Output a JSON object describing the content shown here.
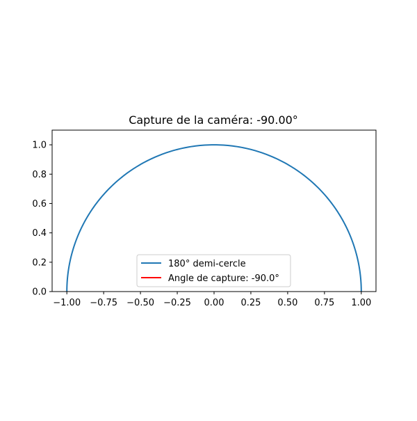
{
  "chart_data": {
    "type": "line",
    "title": "Capture de la caméra: -90.00°",
    "xlabel": "",
    "ylabel": "",
    "xlim": [
      -1.1,
      1.1
    ],
    "ylim": [
      0.0,
      1.1
    ],
    "x_ticks": [
      -1.0,
      -0.75,
      -0.5,
      -0.25,
      0.0,
      0.25,
      0.5,
      0.75,
      1.0
    ],
    "x_tick_labels": [
      "−1.00",
      "−0.75",
      "−0.50",
      "−0.25",
      "0.00",
      "0.25",
      "0.50",
      "0.75",
      "1.00"
    ],
    "y_ticks": [
      0.0,
      0.2,
      0.4,
      0.6,
      0.8,
      1.0
    ],
    "y_tick_labels": [
      "0.0",
      "0.2",
      "0.4",
      "0.6",
      "0.8",
      "1.0"
    ],
    "grid": false,
    "legend_position": "lower-center",
    "series": [
      {
        "name": "180° demi-cercle",
        "color": "#1f77b4",
        "shape": "semicircle",
        "center": [
          0,
          0
        ],
        "radius": 1.0,
        "angle_range_deg": [
          0,
          180
        ]
      },
      {
        "name": "Angle de capture: -90.0°",
        "color": "#ff0000",
        "x": [
          0,
          0
        ],
        "y": [
          0,
          0
        ]
      }
    ]
  }
}
